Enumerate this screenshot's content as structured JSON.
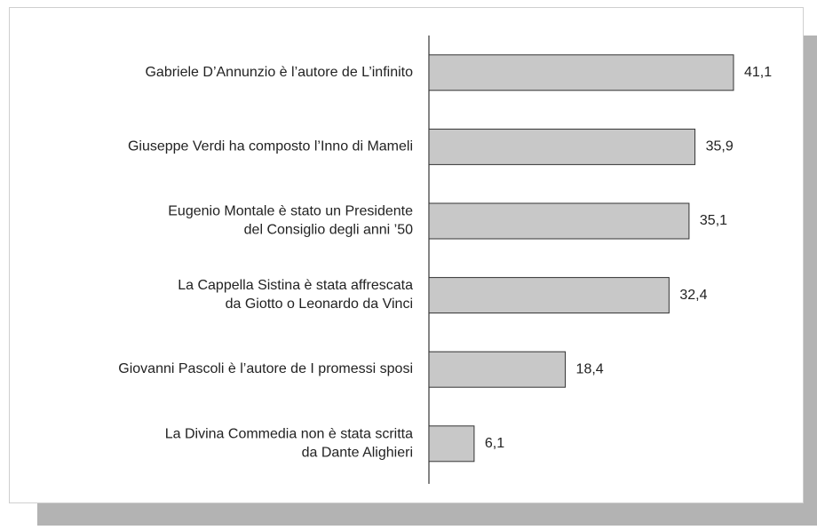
{
  "chart_data": {
    "type": "bar",
    "orientation": "horizontal",
    "categories": [
      "Gabriele D’Annunzio è l’autore de L’infinito",
      "Giuseppe Verdi ha composto l’Inno di Mameli",
      "Eugenio Montale è stato un Presidente\ndel Consiglio degli anni ’50",
      "La Cappella Sistina è stata affrescata\nda Giotto o Leonardo da Vinci",
      "Giovanni Pascoli è l’autore de I promessi sposi",
      "La Divina Commedia non è stata scritta\nda Dante Alighieri"
    ],
    "values": [
      41.1,
      35.9,
      35.1,
      32.4,
      18.4,
      6.1
    ],
    "value_labels": [
      "41,1",
      "35,9",
      "35,1",
      "32,4",
      "18,4",
      "6,1"
    ],
    "color": "#c8c8c8"
  }
}
